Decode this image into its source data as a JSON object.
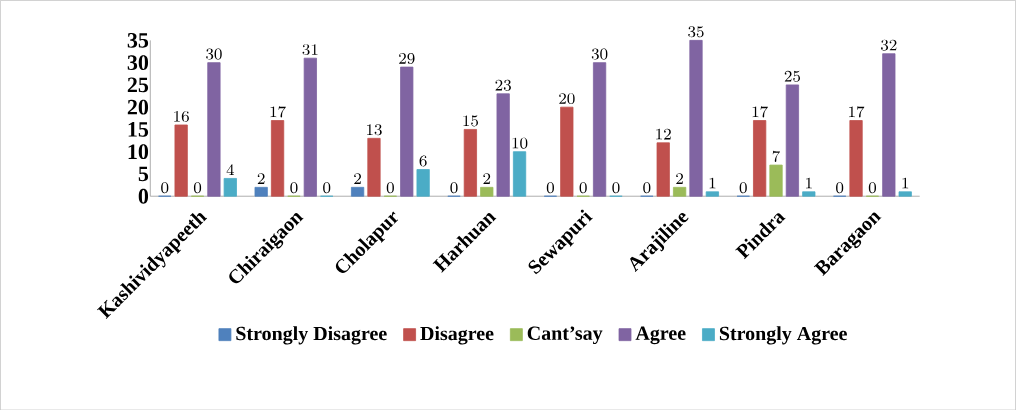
{
  "chart_data": {
    "type": "bar",
    "categories": [
      "Kashividyapeeth",
      "Chiraigaon",
      "Cholapur",
      "Harhuan",
      "Sewapuri",
      "Arajiline",
      "Pindra",
      "Baragaon"
    ],
    "series": [
      {
        "name": "Strongly Disagree",
        "color": "#4f81bd",
        "values": [
          0,
          2,
          2,
          0,
          0,
          0,
          0,
          0
        ]
      },
      {
        "name": "Disagree",
        "color": "#c0504d",
        "values": [
          16,
          17,
          13,
          15,
          20,
          12,
          17,
          17
        ]
      },
      {
        "name": "Cant’say",
        "color": "#9bbb59",
        "values": [
          0,
          0,
          0,
          2,
          0,
          2,
          7,
          0
        ]
      },
      {
        "name": "Agree",
        "color": "#8064a2",
        "values": [
          30,
          31,
          29,
          23,
          30,
          35,
          25,
          32
        ]
      },
      {
        "name": "Strongly Agree",
        "color": "#4bacc6",
        "values": [
          4,
          0,
          6,
          10,
          0,
          1,
          1,
          1
        ]
      }
    ],
    "ylim": [
      0,
      35
    ],
    "yticks": [
      0,
      5,
      10,
      15,
      20,
      25,
      30,
      35
    ],
    "data_labels": true,
    "legend": "bottom",
    "grid": false
  }
}
